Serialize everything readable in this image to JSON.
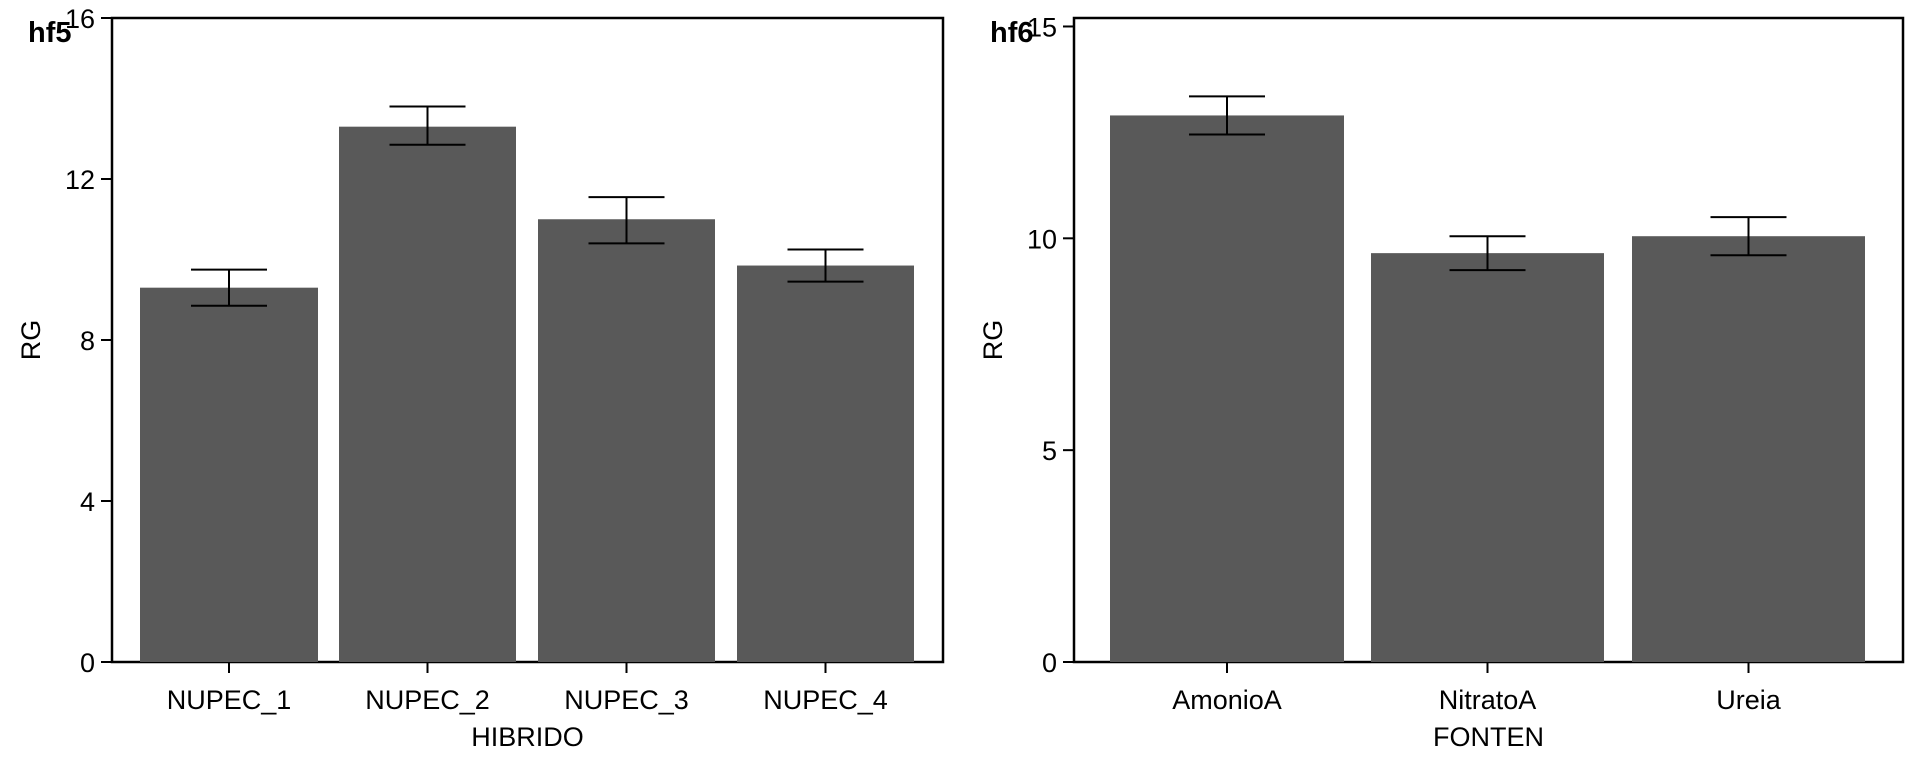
{
  "chart_data": [
    {
      "type": "bar",
      "panel_tag": "hf5",
      "categories": [
        "NUPEC_1",
        "NUPEC_2",
        "NUPEC_3",
        "NUPEC_4"
      ],
      "values": [
        9.3,
        13.3,
        11.0,
        9.85
      ],
      "error_low": [
        8.85,
        12.85,
        10.4,
        9.45
      ],
      "error_high": [
        9.75,
        13.8,
        11.55,
        10.25
      ],
      "xlabel": "HIBRIDO",
      "ylabel": "RG",
      "ylim": [
        0,
        16
      ],
      "yticks": [
        0,
        4,
        8,
        12,
        16
      ],
      "bar_color": "#595959",
      "grid": false
    },
    {
      "type": "bar",
      "panel_tag": "hf6",
      "categories": [
        "AmonioA",
        "NitratoA",
        "Ureia"
      ],
      "values": [
        12.9,
        9.65,
        10.05
      ],
      "error_low": [
        12.45,
        9.25,
        9.6
      ],
      "error_high": [
        13.35,
        10.05,
        10.5
      ],
      "xlabel": "FONTEN",
      "ylabel": "RG",
      "ylim": [
        0,
        15.2
      ],
      "yticks": [
        0,
        5,
        10,
        15
      ],
      "bar_color": "#595959",
      "grid": false
    }
  ]
}
